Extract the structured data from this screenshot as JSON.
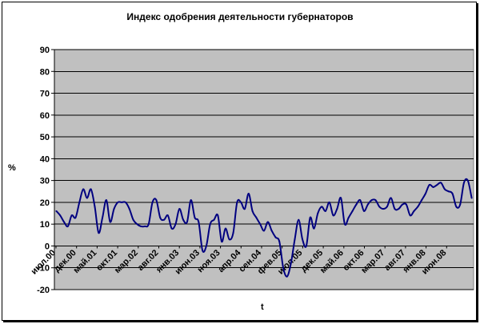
{
  "chart_data": {
    "type": "line",
    "title": "Индекс одобрения деятельности губернаторов",
    "xlabel": "t",
    "ylabel": "%",
    "ylim": [
      -20,
      90
    ],
    "yticks": [
      -20,
      -10,
      0,
      10,
      20,
      30,
      40,
      50,
      60,
      70,
      80,
      90
    ],
    "x_tick_labels": [
      "июл.00",
      "дек.00",
      "май.01",
      "окт.01",
      "мар.02",
      "авг.02",
      "янв.03",
      "июн.03",
      "ноя.03",
      "апр.04",
      "сен.04",
      "фев.05",
      "июл.05",
      "дек.05",
      "май.06",
      "окт.06",
      "мар.07",
      "авг.07",
      "янв.08",
      "июн.08"
    ],
    "grid": "horizontal",
    "legend": "none",
    "colors": {
      "plot_bg": "#c0c0c0",
      "line": "#000080",
      "grid": "#000000"
    },
    "series": [
      {
        "values": [
          16,
          14,
          11,
          9,
          14,
          13,
          20,
          26,
          22,
          26,
          18,
          6,
          13,
          21,
          11,
          17,
          20,
          20,
          20,
          17,
          12,
          10,
          9,
          9,
          10,
          20,
          21,
          13,
          12,
          14,
          8,
          10,
          17,
          12,
          11,
          21,
          13,
          11,
          -2,
          0,
          10,
          12,
          14,
          2,
          8,
          3,
          6,
          20,
          20,
          17,
          24,
          16,
          13,
          10,
          7,
          11,
          7,
          4,
          2,
          -10,
          -14,
          -8,
          3,
          12,
          3,
          0,
          13,
          8,
          15,
          18,
          16,
          20,
          14,
          17,
          22,
          10,
          13,
          16,
          19,
          21,
          16,
          19,
          21,
          21,
          18,
          17,
          18,
          22,
          17,
          17,
          19,
          19,
          14,
          16,
          18,
          21,
          24,
          28,
          27,
          28,
          29,
          26,
          25,
          24,
          18,
          19,
          29,
          30,
          22
        ]
      }
    ]
  }
}
